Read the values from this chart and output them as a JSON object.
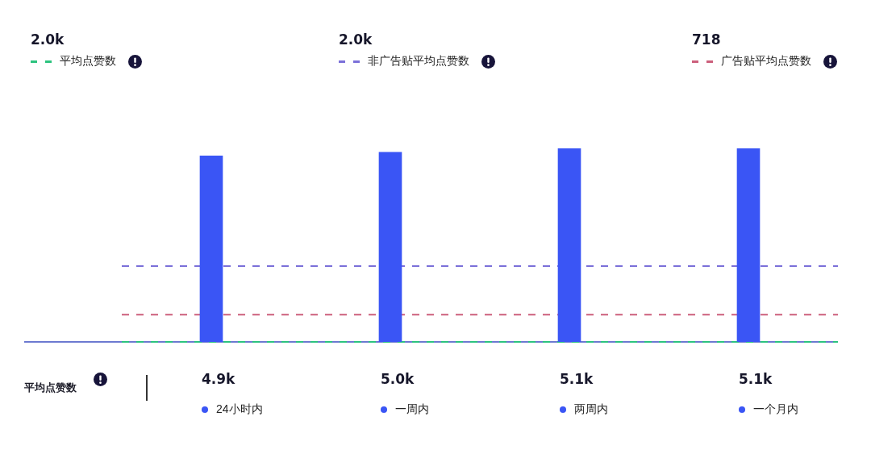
{
  "chart_data": {
    "type": "bar",
    "categories": [
      "24小时内",
      "一周内",
      "两周内",
      "一个月内"
    ],
    "values": [
      4900,
      5000,
      5100,
      5100
    ],
    "value_labels": [
      "4.9k",
      "5.0k",
      "5.1k",
      "5.1k"
    ],
    "color": "#3a55f5",
    "ylabel": "平均点赞数",
    "tick_labels": "x",
    "legend": "top",
    "ref_lines": [
      {
        "axis": "y",
        "value": 0,
        "label": "平均点赞数",
        "color": "#2cc37e",
        "line_style": "dashed"
      },
      {
        "axis": "y",
        "value": 2000,
        "label": "非广告贴平均点赞数",
        "color": "#7b70d9",
        "line_style": "dashed"
      },
      {
        "axis": "y",
        "value": 718,
        "label": "广告贴平均点赞数",
        "color": "#cc5f7c",
        "line_style": "dashed"
      }
    ],
    "annotations": [
      "2.0k",
      "2.0k",
      "718"
    ]
  }
}
